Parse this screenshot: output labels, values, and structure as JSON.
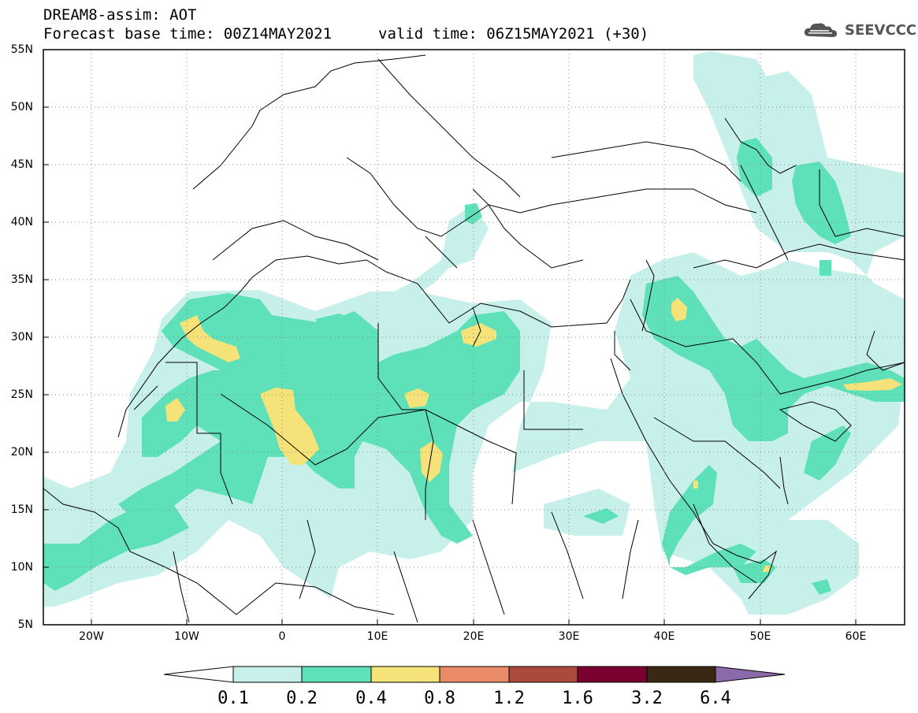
{
  "header": {
    "line1": "DREAM8-assim: AOT",
    "line2": "Forecast base time: 00Z14MAY2021",
    "valid_time": "valid time: 06Z15MAY2021 (+30)"
  },
  "logo": {
    "text": "SEEVCCC",
    "icon": "cloud-icon"
  },
  "map": {
    "lon_range": [
      -25,
      65
    ],
    "lat_range": [
      5,
      55
    ],
    "lat_labels": [
      "55N",
      "50N",
      "45N",
      "40N",
      "35N",
      "30N",
      "25N",
      "20N",
      "15N",
      "10N",
      "5N"
    ],
    "lon_labels": [
      "20W",
      "10W",
      "0",
      "10E",
      "20E",
      "30E",
      "40E",
      "50E",
      "60E"
    ],
    "grid": "dotted"
  },
  "colorbar": {
    "labels": [
      "0.1",
      "0.2",
      "0.4",
      "0.8",
      "1.2",
      "1.6",
      "3.2",
      "6.4"
    ],
    "colors": [
      "#ffffff",
      "#c8f0ea",
      "#5ee0b8",
      "#f5e37a",
      "#e88b66",
      "#aa4a3c",
      "#7a0030",
      "#3a2814",
      "#8a6aa8"
    ]
  }
}
